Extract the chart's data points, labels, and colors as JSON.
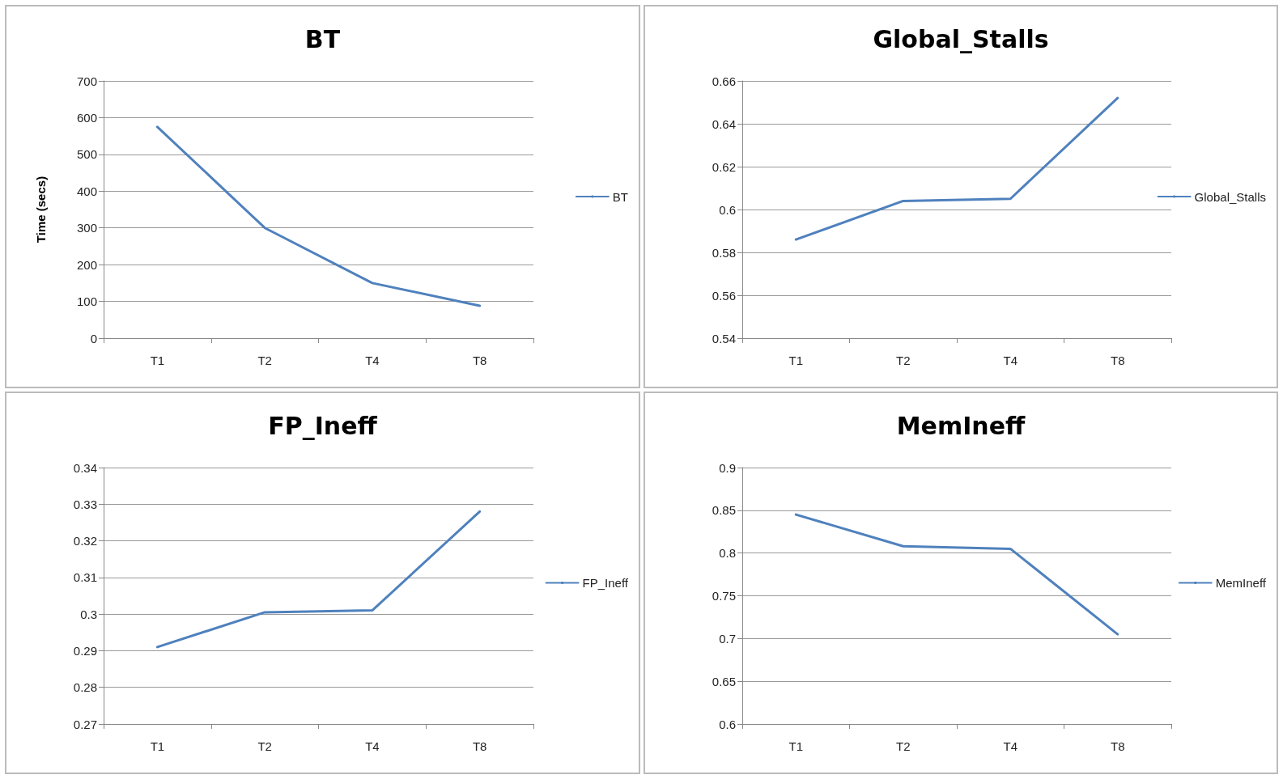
{
  "chart_data": [
    {
      "type": "line",
      "title": "BT",
      "ylabel": "Time (secs)",
      "categories": [
        "T1",
        "T2",
        "T4",
        "T8"
      ],
      "series": [
        {
          "name": "BT",
          "color": "#4f81bd",
          "values": [
            575,
            300,
            150,
            88
          ]
        }
      ],
      "ylim": [
        0,
        700
      ],
      "yticks": [
        0,
        100,
        200,
        300,
        400,
        500,
        600,
        700
      ],
      "grid": "y",
      "legend": "right",
      "marker": "none"
    },
    {
      "type": "line",
      "title": "Global_Stalls",
      "categories": [
        "T1",
        "T2",
        "T4",
        "T8"
      ],
      "series": [
        {
          "name": "Global_Stalls",
          "color": "#4f81bd",
          "values": [
            0.586,
            0.604,
            0.605,
            0.652
          ]
        }
      ],
      "ylim": [
        0.54,
        0.66
      ],
      "yticks": [
        0.54,
        0.56,
        0.58,
        0.6,
        0.62,
        0.64,
        0.66
      ],
      "grid": "y",
      "legend": "right",
      "marker": "none"
    },
    {
      "type": "line",
      "title": "FP_Ineff",
      "categories": [
        "T1",
        "T2",
        "T4",
        "T8"
      ],
      "series": [
        {
          "name": "FP_Ineff",
          "color": "#4f81bd",
          "values": [
            0.291,
            0.3005,
            0.301,
            0.328
          ]
        }
      ],
      "ylim": [
        0.27,
        0.34
      ],
      "yticks": [
        0.27,
        0.28,
        0.29,
        0.3,
        0.31,
        0.32,
        0.33,
        0.34
      ],
      "grid": "y",
      "legend": "right",
      "marker": "none"
    },
    {
      "type": "line",
      "title": "MemIneff",
      "categories": [
        "T1",
        "T2",
        "T4",
        "T8"
      ],
      "series": [
        {
          "name": "MemIneff",
          "color": "#4f81bd",
          "values": [
            0.845,
            0.808,
            0.805,
            0.705
          ]
        }
      ],
      "ylim": [
        0.6,
        0.9
      ],
      "yticks": [
        0.6,
        0.65,
        0.7,
        0.75,
        0.8,
        0.85,
        0.9
      ],
      "grid": "y",
      "legend": "right",
      "marker": "none"
    }
  ]
}
